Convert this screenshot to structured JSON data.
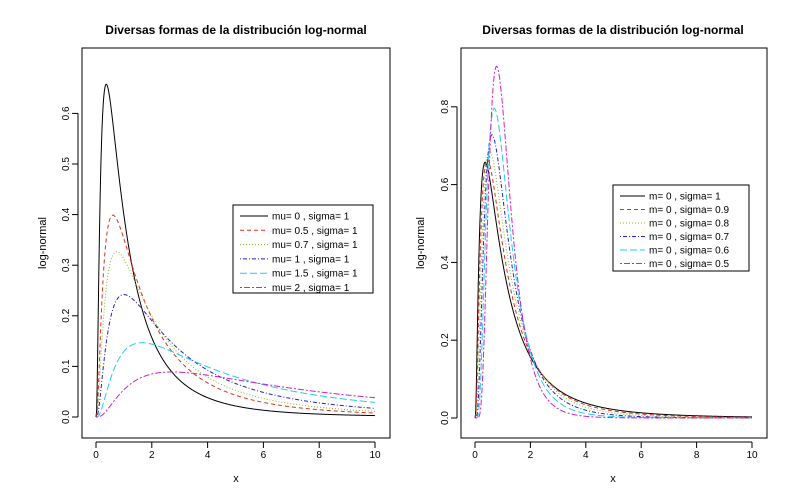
{
  "chart_data": [
    {
      "type": "line",
      "title": "Diversas formas de la distribución log-normal",
      "xlabel": "x",
      "ylabel": "log-normal",
      "xlim": [
        0,
        10
      ],
      "ylim": [
        0,
        0.66
      ],
      "xticks": [
        "0",
        "2",
        "4",
        "6",
        "8",
        "10"
      ],
      "yticks": [
        "0.0",
        "0.1",
        "0.2",
        "0.3",
        "0.4",
        "0.5",
        "0.6"
      ],
      "legend_position": "right",
      "series": [
        {
          "name": "mu= 0  , sigma= 1",
          "mu": 0,
          "sigma": 1,
          "color": "#000000",
          "dash": "solid"
        },
        {
          "name": "mu= 0.5  , sigma= 1",
          "mu": 0.5,
          "sigma": 1,
          "color": "#e0301e",
          "dash": "dashed"
        },
        {
          "name": "mu= 0.7  , sigma= 1",
          "mu": 0.7,
          "sigma": 1,
          "color": "#7fbf1f",
          "dash": "dotted"
        },
        {
          "name": "mu= 1  , sigma= 1",
          "mu": 1,
          "sigma": 1,
          "color": "#2222cc",
          "dash": "dotdash"
        },
        {
          "name": "mu= 1.5  , sigma= 1",
          "mu": 1.5,
          "sigma": 1,
          "color": "#22ccee",
          "dash": "longdash"
        },
        {
          "name": "mu= 2  , sigma= 1",
          "mu": 2,
          "sigma": 1,
          "color": "#cc22cc",
          "dash": "twodash"
        }
      ]
    },
    {
      "type": "line",
      "title": "Diversas formas de la distribución log-normal",
      "xlabel": "x",
      "ylabel": "log-normal",
      "xlim": [
        0,
        10
      ],
      "ylim": [
        0,
        0.91
      ],
      "xticks": [
        "0",
        "2",
        "4",
        "6",
        "8",
        "10"
      ],
      "yticks": [
        "0.0",
        "0.2",
        "0.4",
        "0.6",
        "0.8"
      ],
      "legend_position": "right",
      "series": [
        {
          "name": "m= 0  , sigma= 1",
          "mu": 0,
          "sigma": 1,
          "color": "#000000",
          "dash": "solid"
        },
        {
          "name": "m= 0  , sigma= 0.9",
          "mu": 0,
          "sigma": 0.9,
          "color": "#e0301e",
          "dash": "dashed"
        },
        {
          "name": "m= 0  , sigma= 0.8",
          "mu": 0,
          "sigma": 0.8,
          "color": "#7fbf1f",
          "dash": "dotted"
        },
        {
          "name": "m= 0  , sigma= 0.7",
          "mu": 0,
          "sigma": 0.7,
          "color": "#2222cc",
          "dash": "dotdash"
        },
        {
          "name": "m= 0  , sigma= 0.6",
          "mu": 0,
          "sigma": 0.6,
          "color": "#22ccee",
          "dash": "longdash"
        },
        {
          "name": "m= 0  , sigma= 0.5",
          "mu": 0,
          "sigma": 0.5,
          "color": "#cc22cc",
          "dash": "twodash"
        }
      ]
    }
  ]
}
